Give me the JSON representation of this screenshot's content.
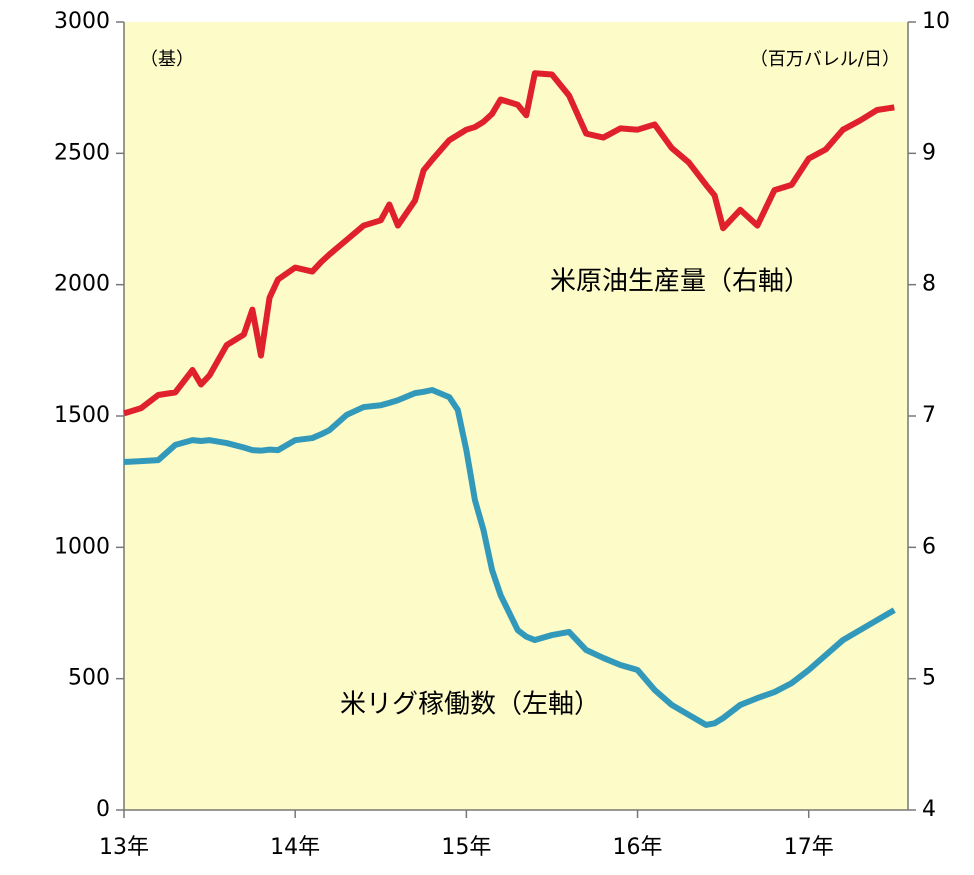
{
  "chart_data": {
    "type": "line",
    "annotations": [
      "（基）",
      "（百万バレル/日）",
      "米原油生産量（右軸）",
      "米リグ稼働数（左軸）"
    ],
    "x": [
      2013.0,
      2013.1,
      2013.2,
      2013.3,
      2013.4,
      2013.45,
      2013.5,
      2013.6,
      2013.7,
      2013.75,
      2013.8,
      2013.85,
      2013.9,
      2014.0,
      2014.1,
      2014.15,
      2014.2,
      2014.3,
      2014.4,
      2014.5,
      2014.55,
      2014.6,
      2014.7,
      2014.75,
      2014.8,
      2014.9,
      2014.95,
      2015.0,
      2015.05,
      2015.1,
      2015.15,
      2015.2,
      2015.3,
      2015.35,
      2015.4,
      2015.5,
      2015.6,
      2015.7,
      2015.8,
      2015.9,
      2016.0,
      2016.1,
      2016.2,
      2016.3,
      2016.4,
      2016.45,
      2016.5,
      2016.6,
      2016.7,
      2016.8,
      2016.9,
      2017.0,
      2017.1,
      2017.2,
      2017.3,
      2017.4,
      2017.5
    ],
    "series": [
      {
        "name": "米リグ稼働数",
        "color": "#3399bb",
        "axis": "y",
        "values": [
          1325,
          1328,
          1332,
          1390,
          1408,
          1405,
          1408,
          1397,
          1380,
          1370,
          1368,
          1372,
          1370,
          1408,
          1416,
          1430,
          1446,
          1504,
          1534,
          1541,
          1550,
          1560,
          1587,
          1592,
          1599,
          1572,
          1523,
          1370,
          1180,
          1066,
          914,
          818,
          685,
          660,
          647,
          666,
          678,
          609,
          579,
          552,
          533,
          457,
          400,
          362,
          324,
          330,
          350,
          400,
          426,
          449,
          483,
          533,
          590,
          647,
          685,
          723,
          761
        ]
      },
      {
        "name": "米原油生産量",
        "color": "#e0202a",
        "axis": "y2",
        "values": [
          7.02,
          7.06,
          7.16,
          7.18,
          7.35,
          7.24,
          7.31,
          7.54,
          7.62,
          7.81,
          7.46,
          7.9,
          8.04,
          8.13,
          8.1,
          8.17,
          8.23,
          8.34,
          8.45,
          8.49,
          8.61,
          8.45,
          8.64,
          8.87,
          8.95,
          9.1,
          9.14,
          9.18,
          9.2,
          9.24,
          9.3,
          9.41,
          9.37,
          9.29,
          9.61,
          9.6,
          9.44,
          9.15,
          9.12,
          9.19,
          9.18,
          9.22,
          9.04,
          8.93,
          8.76,
          8.68,
          8.43,
          8.57,
          8.45,
          8.72,
          8.76,
          8.96,
          9.03,
          9.18,
          9.25,
          9.33,
          9.35
        ]
      }
    ],
    "xlim": [
      2013,
      2017.58
    ],
    "xticks": [
      {
        "value": 2013,
        "label": "13年"
      },
      {
        "value": 2014,
        "label": "14年"
      },
      {
        "value": 2015,
        "label": "15年"
      },
      {
        "value": 2016,
        "label": "16年"
      },
      {
        "value": 2017,
        "label": "17年"
      }
    ],
    "ylim": [
      0,
      3000
    ],
    "yticks": [
      0,
      500,
      1000,
      1500,
      2000,
      2500,
      3000
    ],
    "y2lim": [
      4,
      10
    ],
    "y2ticks": [
      4,
      5,
      6,
      7,
      8,
      9,
      10
    ],
    "background": "#fdfbc8"
  }
}
